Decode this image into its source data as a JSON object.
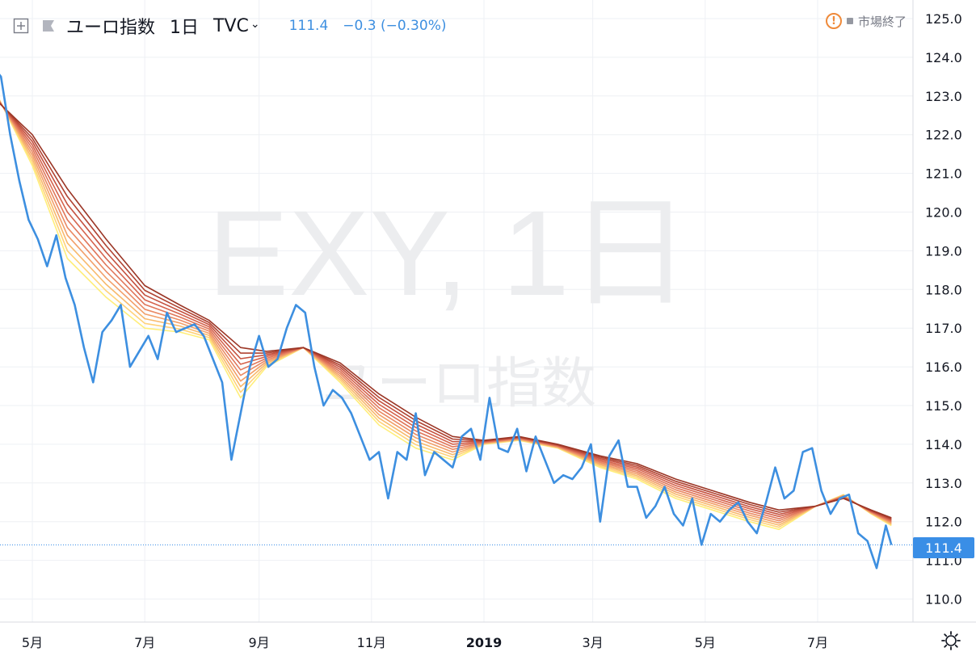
{
  "header": {
    "symbol": "ユーロ指数",
    "timeframe": "1日",
    "source": "TVC",
    "last_price": "111.4",
    "change": "−0.3 (−0.30%)",
    "market_status": "市場終了",
    "icons": [
      "crosshair-add-icon",
      "flag-icon",
      "chevron-down-icon",
      "warning-icon",
      "settings-gear-icon"
    ]
  },
  "watermark": {
    "main": "EXY, 1日",
    "sub": "ユーロ指数"
  },
  "price_tag": "111.4",
  "colors": {
    "price_line": "#3d8fe0",
    "price_tag_bg": "#3a8ee6",
    "ribbon": [
      "#ffee7a",
      "#ffd27a",
      "#f8b96c",
      "#f2a06a",
      "#ea8a64",
      "#e0765a",
      "#d5644e",
      "#c55240",
      "#b04332",
      "#9b3626"
    ],
    "grid": "#eef0f4",
    "axis_text": "#131722"
  },
  "chart_data": {
    "type": "line",
    "title": "EXY, 1日",
    "ylim": [
      109.6,
      125.4
    ],
    "y_ticks": [
      "110.0",
      "111.0",
      "112.0",
      "113.0",
      "114.0",
      "115.0",
      "116.0",
      "117.0",
      "118.0",
      "119.0",
      "120.0",
      "121.0",
      "122.0",
      "123.0",
      "124.0",
      "125.0"
    ],
    "x_ticks": [
      {
        "label": "5月",
        "date": "2018-05-01"
      },
      {
        "label": "7月",
        "date": "2018-07-01"
      },
      {
        "label": "9月",
        "date": "2018-09-01"
      },
      {
        "label": "11月",
        "date": "2018-11-01"
      },
      {
        "label": "2019",
        "date": "2019-01-01"
      },
      {
        "label": "3月",
        "date": "2019-03-01"
      },
      {
        "label": "5月",
        "date": "2019-05-01"
      },
      {
        "label": "7月",
        "date": "2019-07-01"
      }
    ],
    "xlim": [
      "2018-04-08",
      "2019-08-12"
    ],
    "series": [
      {
        "name": "EXY",
        "x": [
          "2018-04-09",
          "2018-04-14",
          "2018-04-19",
          "2018-04-24",
          "2018-04-29",
          "2018-05-04",
          "2018-05-09",
          "2018-05-14",
          "2018-05-19",
          "2018-05-24",
          "2018-05-29",
          "2018-06-03",
          "2018-06-08",
          "2018-06-13",
          "2018-06-18",
          "2018-06-23",
          "2018-06-28",
          "2018-07-03",
          "2018-07-08",
          "2018-07-13",
          "2018-07-18",
          "2018-07-23",
          "2018-07-28",
          "2018-08-02",
          "2018-08-07",
          "2018-08-12",
          "2018-08-17",
          "2018-08-22",
          "2018-08-27",
          "2018-09-01",
          "2018-09-06",
          "2018-09-11",
          "2018-09-16",
          "2018-09-21",
          "2018-09-26",
          "2018-10-01",
          "2018-10-06",
          "2018-10-11",
          "2018-10-16",
          "2018-10-21",
          "2018-10-26",
          "2018-10-31",
          "2018-11-05",
          "2018-11-10",
          "2018-11-15",
          "2018-11-20",
          "2018-11-25",
          "2018-11-30",
          "2018-12-05",
          "2018-12-10",
          "2018-12-15",
          "2018-12-20",
          "2018-12-25",
          "2018-12-30",
          "2019-01-04",
          "2019-01-09",
          "2019-01-14",
          "2019-01-19",
          "2019-01-24",
          "2019-01-29",
          "2019-02-03",
          "2019-02-08",
          "2019-02-13",
          "2019-02-18",
          "2019-02-23",
          "2019-02-28",
          "2019-03-05",
          "2019-03-10",
          "2019-03-15",
          "2019-03-20",
          "2019-03-25",
          "2019-03-30",
          "2019-04-04",
          "2019-04-09",
          "2019-04-14",
          "2019-04-19",
          "2019-04-24",
          "2019-04-29",
          "2019-05-04",
          "2019-05-09",
          "2019-05-14",
          "2019-05-19",
          "2019-05-24",
          "2019-05-29",
          "2019-06-03",
          "2019-06-08",
          "2019-06-13",
          "2019-06-18",
          "2019-06-23",
          "2019-06-28",
          "2019-07-03",
          "2019-07-08",
          "2019-07-13",
          "2019-07-18",
          "2019-07-23",
          "2019-07-28",
          "2019-08-02",
          "2019-08-07",
          "2019-08-10"
        ],
        "y": [
          123.8,
          123.5,
          122.0,
          120.8,
          119.8,
          119.3,
          118.6,
          119.4,
          118.3,
          117.6,
          116.5,
          115.6,
          116.9,
          117.2,
          117.6,
          116.0,
          116.4,
          116.8,
          116.2,
          117.4,
          116.9,
          117.0,
          117.1,
          116.8,
          116.2,
          115.6,
          113.6,
          114.8,
          116.0,
          116.8,
          116.0,
          116.2,
          117.0,
          117.6,
          117.4,
          116.0,
          115.0,
          115.4,
          115.2,
          114.8,
          114.2,
          113.6,
          113.8,
          112.6,
          113.8,
          113.6,
          114.8,
          113.2,
          113.8,
          113.6,
          113.4,
          114.2,
          114.4,
          113.6,
          115.2,
          113.9,
          113.8,
          114.4,
          113.3,
          114.2,
          113.6,
          113.0,
          113.2,
          113.1,
          113.4,
          114.0,
          112.0,
          113.7,
          114.1,
          112.9,
          112.9,
          112.1,
          112.4,
          112.9,
          112.2,
          111.9,
          112.6,
          111.4,
          112.2,
          112.0,
          112.3,
          112.5,
          112.0,
          111.7,
          112.5,
          113.4,
          112.6,
          112.8,
          113.8,
          113.9,
          112.8,
          112.2,
          112.6,
          112.7,
          111.7,
          111.5,
          110.8,
          111.9,
          111.4
        ]
      },
      {
        "name": "MA ribbon (fastest)",
        "x": [
          "2018-04-09",
          "2018-05-01",
          "2018-05-20",
          "2018-06-10",
          "2018-07-01",
          "2018-07-20",
          "2018-08-05",
          "2018-08-22",
          "2018-09-05",
          "2018-09-25",
          "2018-10-15",
          "2018-11-05",
          "2018-11-25",
          "2018-12-15",
          "2019-01-01",
          "2019-01-20",
          "2019-02-10",
          "2019-03-05",
          "2019-03-25",
          "2019-04-15",
          "2019-05-05",
          "2019-05-25",
          "2019-06-10",
          "2019-06-30",
          "2019-07-15",
          "2019-07-30",
          "2019-08-10"
        ],
        "y": [
          123.3,
          121.2,
          118.8,
          117.8,
          117.0,
          116.9,
          116.7,
          115.2,
          116.0,
          116.5,
          115.6,
          114.5,
          113.9,
          113.6,
          114.0,
          114.1,
          113.9,
          113.4,
          113.1,
          112.6,
          112.3,
          112.0,
          111.8,
          112.4,
          112.7,
          112.2,
          111.9
        ]
      },
      {
        "name": "MA ribbon (slowest)",
        "x": [
          "2018-04-09",
          "2018-05-01",
          "2018-05-20",
          "2018-06-10",
          "2018-07-01",
          "2018-07-20",
          "2018-08-05",
          "2018-08-22",
          "2018-09-05",
          "2018-09-25",
          "2018-10-15",
          "2018-11-05",
          "2018-11-25",
          "2018-12-15",
          "2019-01-01",
          "2019-01-20",
          "2019-02-10",
          "2019-03-05",
          "2019-03-25",
          "2019-04-15",
          "2019-05-05",
          "2019-05-25",
          "2019-06-10",
          "2019-06-30",
          "2019-07-15",
          "2019-07-30",
          "2019-08-10"
        ],
        "y": [
          123.0,
          122.0,
          120.6,
          119.3,
          118.1,
          117.6,
          117.2,
          116.5,
          116.4,
          116.5,
          116.1,
          115.3,
          114.7,
          114.2,
          114.1,
          114.2,
          114.0,
          113.7,
          113.5,
          113.1,
          112.8,
          112.5,
          112.3,
          112.4,
          112.6,
          112.3,
          112.1
        ]
      }
    ]
  }
}
